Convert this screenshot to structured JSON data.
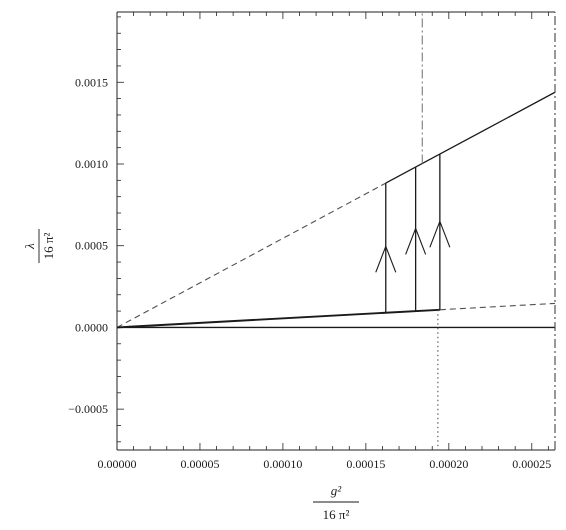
{
  "chart_data": {
    "type": "line",
    "title": "",
    "xlabel": {
      "numerator": "g²",
      "denominator": "16 π²"
    },
    "ylabel": {
      "numerator": "λ",
      "denominator": "16 π²"
    },
    "xlim": [
      0,
      0.000264
    ],
    "ylim": [
      -0.00075,
      0.00193
    ],
    "xticks": [
      0,
      5e-05,
      0.0001,
      0.00015,
      0.0002,
      0.00025
    ],
    "xtick_labels": [
      "0.00000",
      "0.00005",
      "0.00010",
      "0.00015",
      "0.00020",
      "0.00025"
    ],
    "yticks": [
      -0.0005,
      0,
      0.0005,
      0.001,
      0.0015
    ],
    "ytick_labels": [
      "−0.0005",
      "0.0000",
      "0.0005",
      "0.0010",
      "0.0015"
    ],
    "grid": false,
    "series": [
      {
        "dash": "dashed",
        "color": "#505050",
        "points": [
          [
            0,
            0
          ],
          [
            0.000162,
            0.000883
          ]
        ]
      },
      {
        "dash": "solid",
        "color": "#1a1a1a",
        "points": [
          [
            0.000162,
            0.000883
          ],
          [
            0.000264,
            0.001439
          ]
        ]
      },
      {
        "dash": "solid",
        "color": "#1a1a1a",
        "weight": "bold",
        "points": [
          [
            0,
            0
          ],
          [
            0.0001946,
            0.000108
          ]
        ]
      },
      {
        "dash": "dashed",
        "color": "#505050",
        "points": [
          [
            0.0001946,
            0.000108
          ],
          [
            0.000264,
            0.000147
          ]
        ]
      },
      {
        "dash": "solid",
        "color": "#1a1a1a",
        "points": [
          [
            0,
            0
          ],
          [
            0.000264,
            0
          ]
        ]
      },
      {
        "dash": "solid",
        "color": "#1a1a1a",
        "points": [
          [
            0.000162,
            9e-05
          ],
          [
            0.000162,
            0.000883
          ]
        ]
      },
      {
        "dash": "solid",
        "color": "#1a1a1a",
        "points": [
          [
            0.00018,
            0.0001
          ],
          [
            0.00018,
            0.000981
          ]
        ]
      },
      {
        "dash": "solid",
        "color": "#1a1a1a",
        "points": [
          [
            0.0001946,
            0.000108
          ],
          [
            0.0001946,
            0.00106
          ]
        ]
      },
      {
        "dash": "dash-dot",
        "color": "#7a7a7a",
        "points": [
          [
            0.000184,
            0.001003
          ],
          [
            0.000184,
            0.00193
          ]
        ]
      },
      {
        "dash": "dotted",
        "color": "#555555",
        "points": [
          [
            0.0001934,
            0.000108
          ],
          [
            0.0001934,
            -0.00075
          ]
        ]
      },
      {
        "dash": "dash-dot",
        "color": "#444444",
        "points": [
          [
            0.000264,
            -0.00075
          ],
          [
            0.000264,
            0.00193
          ]
        ]
      }
    ],
    "arrows": [
      {
        "x": 0.000162,
        "y": 0.000496,
        "direction": "up"
      },
      {
        "x": 0.00018,
        "y": 0.000606,
        "direction": "up"
      },
      {
        "x": 0.0001946,
        "y": 0.000649,
        "direction": "up"
      }
    ]
  }
}
